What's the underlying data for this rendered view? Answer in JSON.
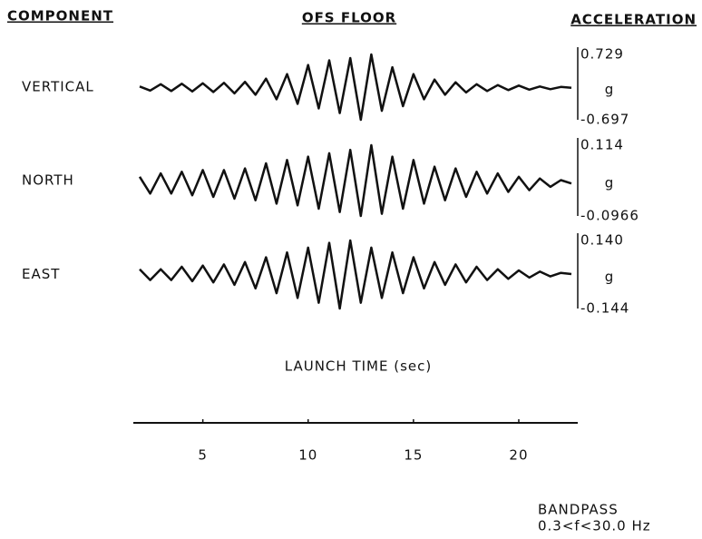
{
  "chart_data": {
    "type": "line",
    "title": "OFS FLOOR",
    "left_header": "COMPONENT",
    "right_header": "ACCELERATION",
    "xlabel": "LAUNCH TIME (sec)",
    "note": [
      "BANDPASS",
      "0.3<f<30.0 Hz"
    ],
    "xlim": [
      1.7,
      22.8
    ],
    "xticks": [
      5,
      10,
      15,
      20
    ],
    "x": [
      2,
      2.5,
      3,
      3.5,
      4,
      4.5,
      5,
      5.5,
      6,
      6.5,
      7,
      7.5,
      8,
      8.5,
      9,
      9.5,
      10,
      10.5,
      11,
      11.5,
      12,
      12.5,
      13,
      13.5,
      14,
      14.5,
      15,
      15.5,
      16,
      16.5,
      17,
      17.5,
      18,
      18.5,
      19,
      19.5,
      20,
      20.5,
      21,
      21.5,
      22,
      22.5
    ],
    "series": [
      {
        "name": "VERTICAL",
        "color": "#111111",
        "unit": "g",
        "ylim": [
          -0.697,
          0.729
        ],
        "yticks": [
          0.729,
          -0.697
        ],
        "values": [
          0.03,
          -0.06,
          0.08,
          -0.07,
          0.09,
          -0.08,
          0.1,
          -0.09,
          0.11,
          -0.12,
          0.13,
          -0.15,
          0.2,
          -0.25,
          0.3,
          -0.35,
          0.5,
          -0.45,
          0.6,
          -0.55,
          0.65,
          -0.697,
          0.729,
          -0.5,
          0.45,
          -0.4,
          0.3,
          -0.25,
          0.18,
          -0.15,
          0.12,
          -0.1,
          0.08,
          -0.07,
          0.06,
          -0.05,
          0.05,
          -0.04,
          0.03,
          -0.03,
          0.02,
          0.0
        ]
      },
      {
        "name": "NORTH",
        "color": "#111111",
        "unit": "g",
        "ylim": [
          -0.0966,
          0.114
        ],
        "yticks": [
          0.114,
          -0.0966
        ],
        "values": [
          0.02,
          -0.03,
          0.03,
          -0.03,
          0.035,
          -0.035,
          0.04,
          -0.04,
          0.04,
          -0.045,
          0.045,
          -0.05,
          0.06,
          -0.06,
          0.07,
          -0.065,
          0.08,
          -0.075,
          0.09,
          -0.085,
          0.1,
          -0.0966,
          0.114,
          -0.09,
          0.08,
          -0.075,
          0.07,
          -0.06,
          0.05,
          -0.05,
          0.045,
          -0.04,
          0.035,
          -0.03,
          0.03,
          -0.025,
          0.02,
          -0.02,
          0.015,
          -0.01,
          0.01,
          0.0
        ]
      },
      {
        "name": "EAST",
        "color": "#111111",
        "unit": "g",
        "ylim": [
          -0.144,
          0.14
        ],
        "yticks": [
          {
            "value": 0.14,
            "label": "0.140"
          },
          -0.144
        ],
        "values": [
          0.02,
          -0.025,
          0.02,
          -0.025,
          0.03,
          -0.03,
          0.035,
          -0.035,
          0.04,
          -0.045,
          0.05,
          -0.06,
          0.07,
          -0.08,
          0.09,
          -0.1,
          0.11,
          -0.12,
          0.13,
          -0.144,
          0.14,
          -0.12,
          0.11,
          -0.1,
          0.09,
          -0.08,
          0.07,
          -0.06,
          0.05,
          -0.045,
          0.04,
          -0.035,
          0.03,
          -0.025,
          0.02,
          -0.02,
          0.015,
          -0.015,
          0.01,
          -0.01,
          0.005,
          0.0
        ]
      }
    ]
  }
}
